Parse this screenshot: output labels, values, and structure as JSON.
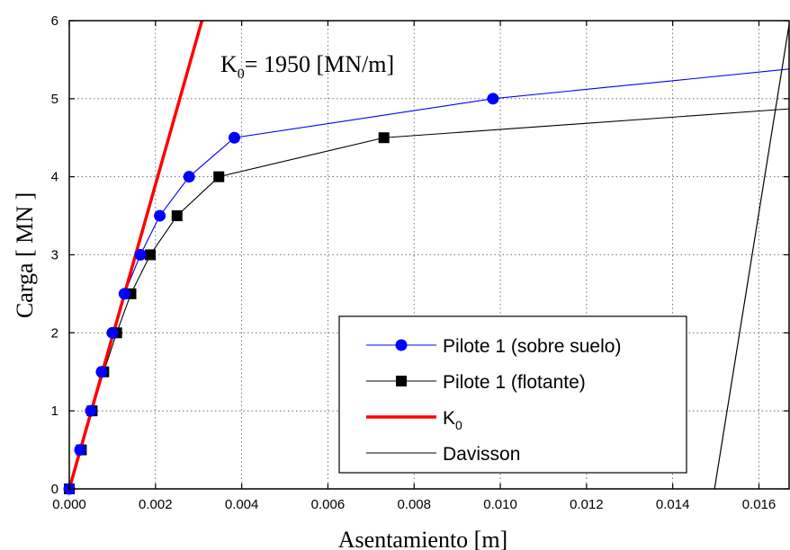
{
  "chart_data": {
    "type": "line",
    "title": "",
    "xlabel": "Asentamiento  [m]",
    "ylabel": "Carga [ MN ]",
    "xlim": [
      0,
      0.0167
    ],
    "ylim": [
      0,
      6
    ],
    "grid": true,
    "legend_position": "lower-right",
    "x_ticks": [
      "0.000",
      "0.002",
      "0.004",
      "0.006",
      "0.008",
      "0.010",
      "0.012",
      "0.014",
      "0.016"
    ],
    "x_tick_values": [
      0,
      0.002,
      0.004,
      0.006,
      0.008,
      0.01,
      0.012,
      0.014,
      0.016
    ],
    "y_ticks": [
      "0",
      "1",
      "2",
      "3",
      "4",
      "5",
      "6"
    ],
    "y_tick_values": [
      0,
      1,
      2,
      3,
      4,
      5,
      6
    ],
    "annotation": {
      "prefix": "K",
      "subscript": "0",
      "suffix": "= 1950  [MN/m]"
    },
    "series": [
      {
        "name": "Pilote 1 (sobre suelo)",
        "color": "#0000ff",
        "marker": "circle",
        "x": [
          0,
          0.00025,
          0.0005,
          0.00075,
          0.001,
          0.00128,
          0.00165,
          0.0021,
          0.00278,
          0.00383,
          0.00983,
          0.0167
        ],
        "y": [
          0,
          0.5,
          1.0,
          1.5,
          2.0,
          2.5,
          3.0,
          3.5,
          4.0,
          4.5,
          5.0,
          5.38
        ],
        "marker_count": 11
      },
      {
        "name": "Pilote 1 (flotante)",
        "color": "#000000",
        "marker": "square",
        "x": [
          0,
          0.00028,
          0.00053,
          0.0008,
          0.0011,
          0.00143,
          0.00188,
          0.0025,
          0.00347,
          0.0073,
          0.0167
        ],
        "y": [
          0,
          0.5,
          1.0,
          1.5,
          2.0,
          2.5,
          3.0,
          3.5,
          4.0,
          4.5,
          4.87
        ],
        "marker_count": 10
      },
      {
        "name": "K0",
        "legend_label": "K",
        "legend_subscript": "0",
        "color": "#ff0000",
        "marker": "none",
        "x": [
          0,
          0.003077
        ],
        "y": [
          0,
          6
        ]
      },
      {
        "name": "Davisson",
        "color": "#000000",
        "marker": "none",
        "x": [
          0.01497,
          0.0167
        ],
        "y": [
          0,
          5.95
        ]
      }
    ]
  }
}
